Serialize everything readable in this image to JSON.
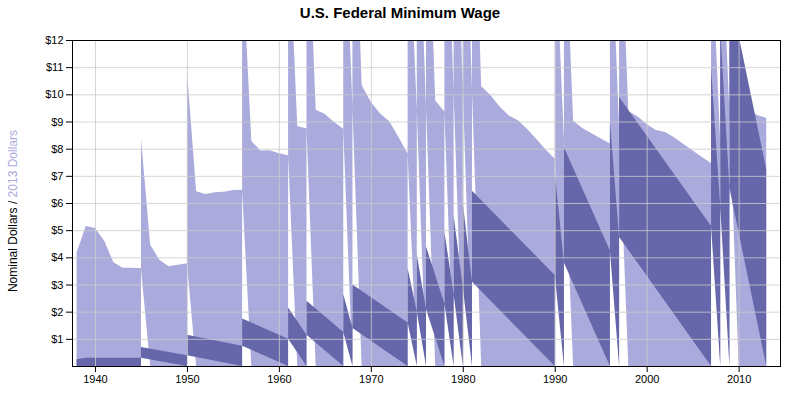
{
  "chart_data": {
    "type": "area",
    "title": "U.S. Federal Minimum Wage",
    "ylabel": [
      "Nominal Dollars",
      " / ",
      "2013 Dollars"
    ],
    "xlim": [
      1937.5,
      2014.5
    ],
    "ylim": [
      0,
      12
    ],
    "xticks": [
      1940,
      1950,
      1960,
      1970,
      1980,
      1990,
      2000,
      2010
    ],
    "yticks": [
      {
        "value": 1,
        "label": "$1"
      },
      {
        "value": 2,
        "label": "$2"
      },
      {
        "value": 3,
        "label": "$3"
      },
      {
        "value": 4,
        "label": "$4"
      },
      {
        "value": 5,
        "label": "$5"
      },
      {
        "value": 6,
        "label": "$6"
      },
      {
        "value": 7,
        "label": "$7"
      },
      {
        "value": 8,
        "label": "$8"
      },
      {
        "value": 9,
        "label": "$9"
      },
      {
        "value": 10,
        "label": "$10"
      },
      {
        "value": 11,
        "label": "$11"
      },
      {
        "value": 12,
        "label": "$12"
      }
    ],
    "grid": true,
    "series": [
      {
        "name": "2013 Dollars",
        "color": "#aaaadd",
        "x": [
          1938,
          1939,
          1940,
          1941,
          1942,
          1943,
          1944,
          1945,
          1945,
          1946,
          1947,
          1948,
          1949,
          1950,
          1950,
          1951,
          1952,
          1953,
          1954,
          1955,
          1956,
          1956,
          1957,
          1958,
          1959,
          1960,
          1961,
          1961,
          1962,
          1963,
          1963,
          1964,
          1965,
          1966,
          1967,
          1967,
          1968,
          1968,
          1969,
          1970,
          1971,
          1972,
          1973,
          1974,
          1974,
          1975,
          1975,
          1976,
          1976,
          1977,
          1978,
          1978,
          1979,
          1979,
          1980,
          1980,
          1981,
          1981,
          1982,
          1983,
          1984,
          1985,
          1986,
          1987,
          1988,
          1989,
          1990,
          1990,
          1991,
          1991,
          1992,
          1993,
          1994,
          1995,
          1996,
          1996,
          1997,
          1997,
          1998,
          1999,
          2000,
          2001,
          2002,
          2003,
          2004,
          2005,
          2006,
          2007,
          2007,
          2008,
          2008,
          2009,
          2009,
          2010,
          2011,
          2012,
          2013,
          2013
        ],
        "values": [
          4.18,
          5.15,
          5.08,
          4.61,
          3.82,
          3.62,
          3.62,
          3.6,
          4.8,
          4.46,
          3.91,
          3.67,
          3.73,
          3.78,
          7.09,
          6.43,
          6.33,
          6.4,
          6.41,
          6.48,
          6.49,
          8.65,
          8.28,
          7.93,
          7.94,
          7.83,
          7.76,
          8.93,
          8.83,
          8.74,
          9.5,
          9.43,
          9.28,
          8.98,
          8.73,
          9.72,
          9.52,
          10.88,
          10.34,
          9.72,
          9.29,
          9.01,
          8.43,
          7.82,
          9.78,
          9.4,
          9.87,
          9.5,
          10.4,
          9.77,
          9.37,
          10.78,
          10.1,
          11.06,
          10.18,
          10.87,
          10.16,
          10.97,
          10.3,
          9.98,
          9.55,
          9.22,
          9.05,
          8.72,
          8.36,
          7.97,
          7.63,
          8.68,
          8.29,
          9.26,
          9.03,
          8.76,
          8.57,
          8.37,
          8.19,
          9.16,
          8.77,
          9.56,
          9.38,
          9.19,
          8.9,
          8.69,
          8.61,
          8.41,
          8.17,
          7.93,
          7.69,
          7.47,
          8.51,
          8.21,
          9.11,
          9.32,
          10.04,
          9.86,
          9.47,
          9.24,
          9.13,
          7.25
        ]
      },
      {
        "name": "Nominal Dollars",
        "color": "#6666aa",
        "x": [
          1938,
          1939,
          1945,
          1945,
          1950,
          1950,
          1956,
          1956,
          1961,
          1961,
          1963,
          1963,
          1967,
          1967,
          1968,
          1968,
          1974,
          1974,
          1975,
          1975,
          1976,
          1976,
          1978,
          1978,
          1979,
          1979,
          1980,
          1980,
          1981,
          1981,
          1990,
          1990,
          1991,
          1991,
          1996,
          1996,
          1997,
          1997,
          2007,
          2007,
          2008,
          2008,
          2009,
          2009,
          2013
        ],
        "values": [
          0.25,
          0.3,
          0.3,
          0.4,
          0.4,
          0.75,
          0.75,
          1.0,
          1.0,
          1.15,
          1.15,
          1.25,
          1.25,
          1.4,
          1.4,
          1.6,
          1.6,
          2.0,
          2.0,
          2.1,
          2.1,
          2.3,
          2.3,
          2.65,
          2.65,
          2.9,
          2.9,
          3.1,
          3.1,
          3.35,
          3.35,
          3.8,
          3.8,
          4.25,
          4.25,
          4.75,
          4.75,
          5.15,
          5.15,
          5.85,
          5.85,
          6.55,
          6.55,
          7.25,
          7.25
        ]
      }
    ]
  }
}
